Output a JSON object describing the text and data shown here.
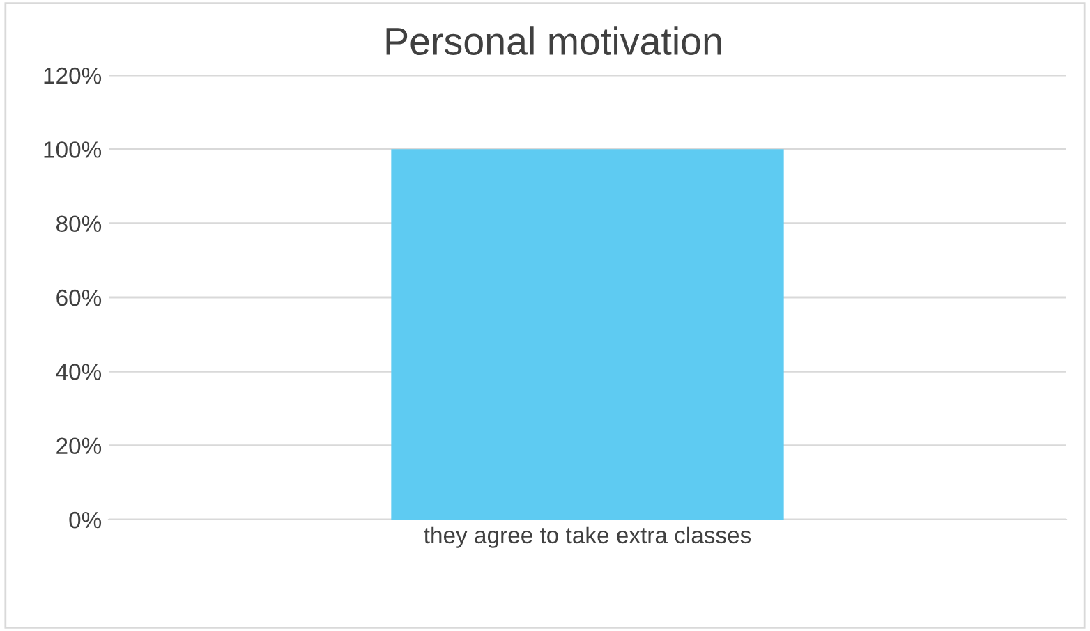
{
  "chart_data": {
    "type": "bar",
    "title": "Personal motivation",
    "categories": [
      "they agree to take extra classes"
    ],
    "series": [
      {
        "color": "#5ecbf2",
        "values": [
          100
        ]
      }
    ],
    "ylim": [
      0,
      120
    ],
    "yticks": [
      {
        "value": 0,
        "label": "0%"
      },
      {
        "value": 20,
        "label": "20%"
      },
      {
        "value": 40,
        "label": "40%"
      },
      {
        "value": 60,
        "label": "60%"
      },
      {
        "value": 80,
        "label": "80%"
      },
      {
        "value": 100,
        "label": "100%"
      },
      {
        "value": 120,
        "label": "120%"
      }
    ],
    "grid": "y"
  }
}
